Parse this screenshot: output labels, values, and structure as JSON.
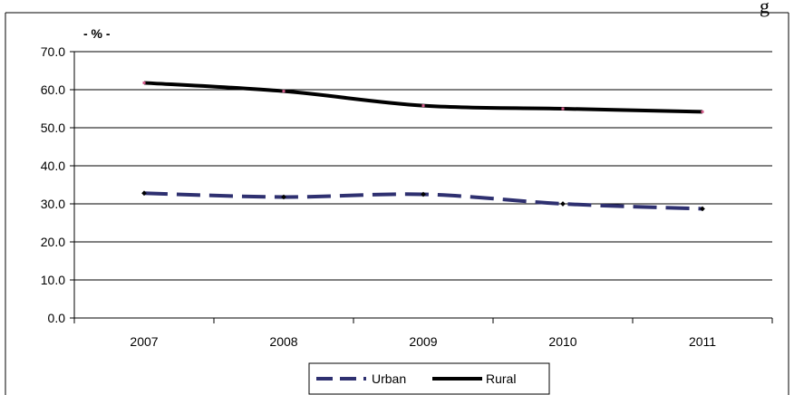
{
  "chart_data": {
    "type": "line",
    "title": "",
    "ylabel": "- % -",
    "xlabel": "",
    "categories": [
      "2007",
      "2008",
      "2009",
      "2010",
      "2011"
    ],
    "y_ticks": [
      "0.0",
      "10.0",
      "20.0",
      "30.0",
      "40.0",
      "50.0",
      "60.0",
      "70.0"
    ],
    "ylim": [
      0,
      70
    ],
    "grid": true,
    "legend_position": "bottom-center",
    "series": [
      {
        "name": "Urban",
        "values": [
          32.8,
          31.8,
          32.5,
          30.0,
          28.7
        ],
        "color": "#2e3070",
        "style": "dashed"
      },
      {
        "name": "Rural",
        "values": [
          61.8,
          59.6,
          55.8,
          55.0,
          54.2
        ],
        "color": "#000000",
        "style": "solid"
      }
    ]
  },
  "page": {
    "corner_fragment": "g"
  }
}
